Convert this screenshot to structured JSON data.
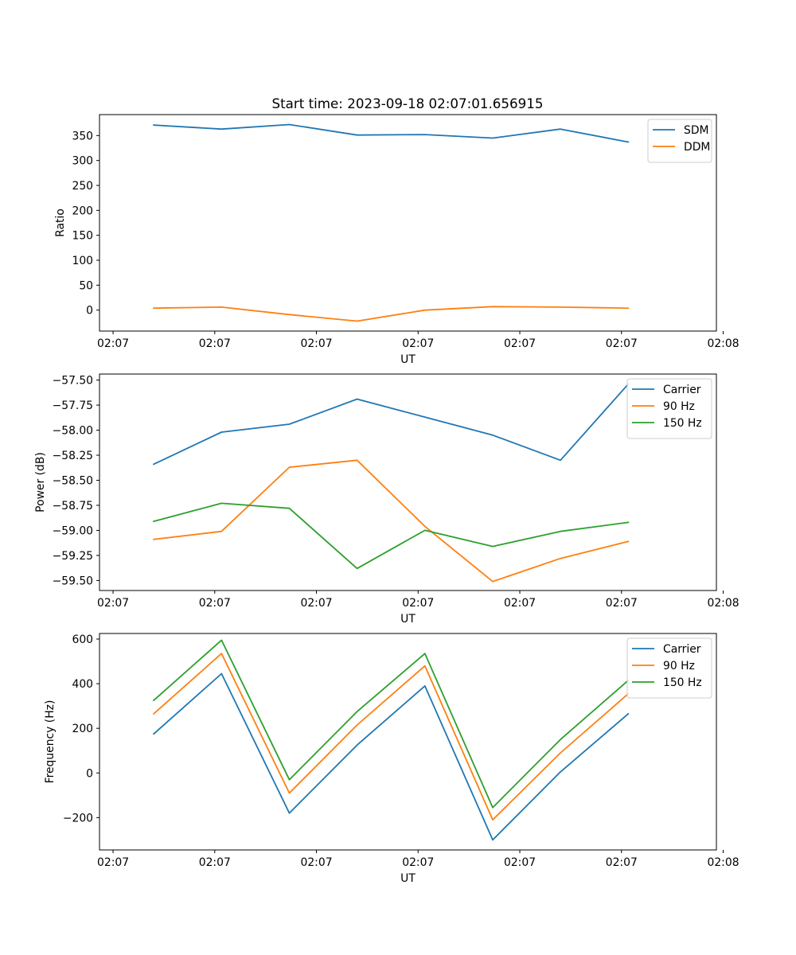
{
  "figure_title": "Start time: 2023-09-18 02:07:01.656915",
  "chart_data": [
    {
      "type": "line",
      "title": "Start time: 2023-09-18 02:07:01.656915",
      "xlabel": "UT",
      "ylabel": "Ratio",
      "x": [
        1,
        2,
        3,
        4,
        5,
        6,
        7,
        8
      ],
      "xlim": [
        0.2,
        9.3
      ],
      "x_ticks": [
        0.4,
        1.9,
        3.4,
        4.9,
        6.4,
        7.9,
        9.4
      ],
      "x_tick_labels": [
        "02:07",
        "02:07",
        "02:07",
        "02:07",
        "02:07",
        "02:07",
        "02:08"
      ],
      "ylim": [
        -42,
        392
      ],
      "y_ticks": [
        0,
        50,
        100,
        150,
        200,
        250,
        300,
        350
      ],
      "y_tick_labels": [
        "0",
        "50",
        "100",
        "150",
        "200",
        "250",
        "300",
        "350"
      ],
      "legend_position": "top-right",
      "series": [
        {
          "name": "SDM",
          "color": "#1f77b4",
          "values": [
            371,
            363,
            372,
            351,
            352,
            345,
            363,
            337
          ]
        },
        {
          "name": "DDM",
          "color": "#ff7f0e",
          "values": [
            4,
            6,
            -9,
            -22,
            0,
            7,
            6,
            4
          ]
        }
      ]
    },
    {
      "type": "line",
      "title": "",
      "xlabel": "UT",
      "ylabel": "Power (dB)",
      "x": [
        1,
        2,
        3,
        4,
        5,
        6,
        7,
        8
      ],
      "xlim": [
        0.2,
        9.3
      ],
      "x_ticks": [
        0.4,
        1.9,
        3.4,
        4.9,
        6.4,
        7.9,
        9.4
      ],
      "x_tick_labels": [
        "02:07",
        "02:07",
        "02:07",
        "02:07",
        "02:07",
        "02:07",
        "02:08"
      ],
      "ylim": [
        -59.6,
        -57.44
      ],
      "y_ticks": [
        -59.5,
        -59.25,
        -59.0,
        -58.75,
        -58.5,
        -58.25,
        -58.0,
        -57.75,
        -57.5
      ],
      "y_tick_labels": [
        "−59.50",
        "−59.25",
        "−59.00",
        "−58.75",
        "−58.50",
        "−58.25",
        "−58.00",
        "−57.75",
        "−57.50"
      ],
      "legend_position": "top-right",
      "series": [
        {
          "name": "Carrier",
          "color": "#1f77b4",
          "values": [
            -58.34,
            -58.02,
            -57.94,
            -57.69,
            -57.87,
            -58.05,
            -58.3,
            -57.54
          ]
        },
        {
          "name": "90 Hz",
          "color": "#ff7f0e",
          "values": [
            -59.09,
            -59.01,
            -58.37,
            -58.3,
            -58.96,
            -59.51,
            -59.28,
            -59.11
          ]
        },
        {
          "name": "150 Hz",
          "color": "#2ca02c",
          "values": [
            -58.91,
            -58.73,
            -58.78,
            -59.38,
            -59.0,
            -59.16,
            -59.01,
            -58.92
          ]
        }
      ]
    },
    {
      "type": "line",
      "title": "",
      "xlabel": "UT",
      "ylabel": "Frequency (Hz)",
      "x": [
        1,
        2,
        3,
        4,
        5,
        6,
        7,
        8
      ],
      "xlim": [
        0.2,
        9.3
      ],
      "x_ticks": [
        0.4,
        1.9,
        3.4,
        4.9,
        6.4,
        7.9,
        9.4
      ],
      "x_tick_labels": [
        "02:07",
        "02:07",
        "02:07",
        "02:07",
        "02:07",
        "02:07",
        "02:08"
      ],
      "ylim": [
        -345,
        625
      ],
      "y_ticks": [
        -200,
        0,
        200,
        400,
        600
      ],
      "y_tick_labels": [
        "−200",
        "0",
        "200",
        "400",
        "600"
      ],
      "legend_position": "top-right",
      "series": [
        {
          "name": "Carrier",
          "color": "#1f77b4",
          "values": [
            175,
            445,
            -180,
            125,
            390,
            -300,
            5,
            265
          ]
        },
        {
          "name": "90 Hz",
          "color": "#ff7f0e",
          "values": [
            265,
            535,
            -90,
            215,
            480,
            -210,
            90,
            355
          ]
        },
        {
          "name": "150 Hz",
          "color": "#2ca02c",
          "values": [
            325,
            595,
            -30,
            275,
            535,
            -155,
            150,
            415
          ]
        }
      ]
    }
  ]
}
